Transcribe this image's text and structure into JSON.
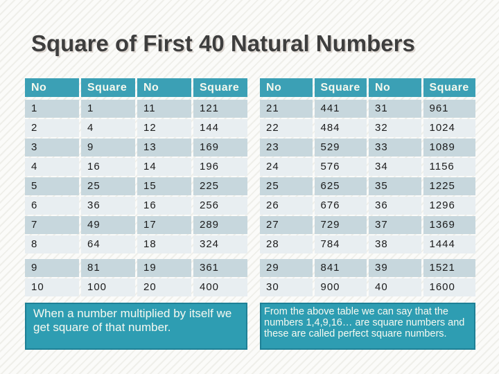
{
  "slide": {
    "title": "Square of First 40 Natural Numbers",
    "note_left": "When a number multiplied by itself we get square of that number.",
    "note_right": "From the above table we can say that the numbers 1,4,9,16… are square numbers and these are called perfect square numbers."
  },
  "colors": {
    "header_teal": "#3ba0b5",
    "note_box_teal": "#2e9db2",
    "note_box_border": "#1e8096",
    "row_dark": "#c7d7dd",
    "row_light": "#e8eef1",
    "title_gray": "#3e3e3e",
    "cell_text": "#1b1b1b"
  },
  "tables": [
    {
      "headers": [
        "No",
        "Square",
        "No",
        "Square"
      ],
      "rows": [
        [
          "1",
          "1",
          "11",
          "121"
        ],
        [
          "2",
          "4",
          "12",
          "144"
        ],
        [
          "3",
          "9",
          "13",
          "169"
        ],
        [
          "4",
          "16",
          "14",
          "196"
        ],
        [
          "5",
          "25",
          "15",
          "225"
        ],
        [
          "6",
          "36",
          "16",
          "256"
        ],
        [
          "7",
          "49",
          "17",
          "289"
        ],
        [
          "8",
          "64",
          "18",
          "324"
        ],
        [
          "9",
          "81",
          "19",
          "361"
        ],
        [
          "10",
          "100",
          "20",
          "400"
        ]
      ]
    },
    {
      "headers": [
        "No",
        "Square",
        "No",
        "Square"
      ],
      "rows": [
        [
          "21",
          "441",
          "31",
          "961"
        ],
        [
          "22",
          "484",
          "32",
          "1024"
        ],
        [
          "23",
          "529",
          "33",
          "1089"
        ],
        [
          "24",
          "576",
          "34",
          "1156"
        ],
        [
          "25",
          "625",
          "35",
          "1225"
        ],
        [
          "26",
          "676",
          "36",
          "1296"
        ],
        [
          "27",
          "729",
          "37",
          "1369"
        ],
        [
          "28",
          "784",
          "38",
          "1444"
        ],
        [
          "29",
          "841",
          "39",
          "1521"
        ],
        [
          "30",
          "900",
          "40",
          "1600"
        ]
      ]
    }
  ]
}
